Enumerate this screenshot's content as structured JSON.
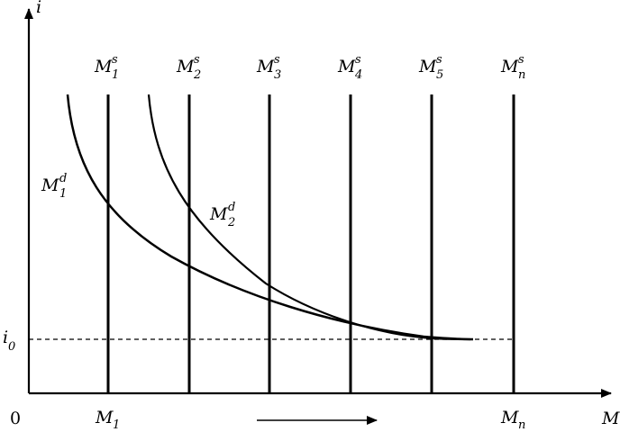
{
  "axes": {
    "y_label": "i",
    "x_label": "M",
    "origin_label": "0",
    "i_level": {
      "base": "i",
      "sub": "0"
    }
  },
  "supply_curves": [
    {
      "base": "M",
      "sup": "s",
      "sub": "1"
    },
    {
      "base": "M",
      "sup": "s",
      "sub": "2"
    },
    {
      "base": "M",
      "sup": "s",
      "sub": "3"
    },
    {
      "base": "M",
      "sup": "s",
      "sub": "4"
    },
    {
      "base": "M",
      "sup": "s",
      "sub": "5"
    },
    {
      "base": "M",
      "sup": "s",
      "sub": "n"
    }
  ],
  "demand_curves": [
    {
      "base": "M",
      "sup": "d",
      "sub": "1"
    },
    {
      "base": "M",
      "sup": "d",
      "sub": "2"
    }
  ],
  "x_ticks": [
    {
      "base": "M",
      "sub": "1"
    },
    {
      "base": "M",
      "sub": "n"
    }
  ],
  "colors": {
    "line": "#000000",
    "background": "#ffffff"
  },
  "arrow_direction": "right"
}
